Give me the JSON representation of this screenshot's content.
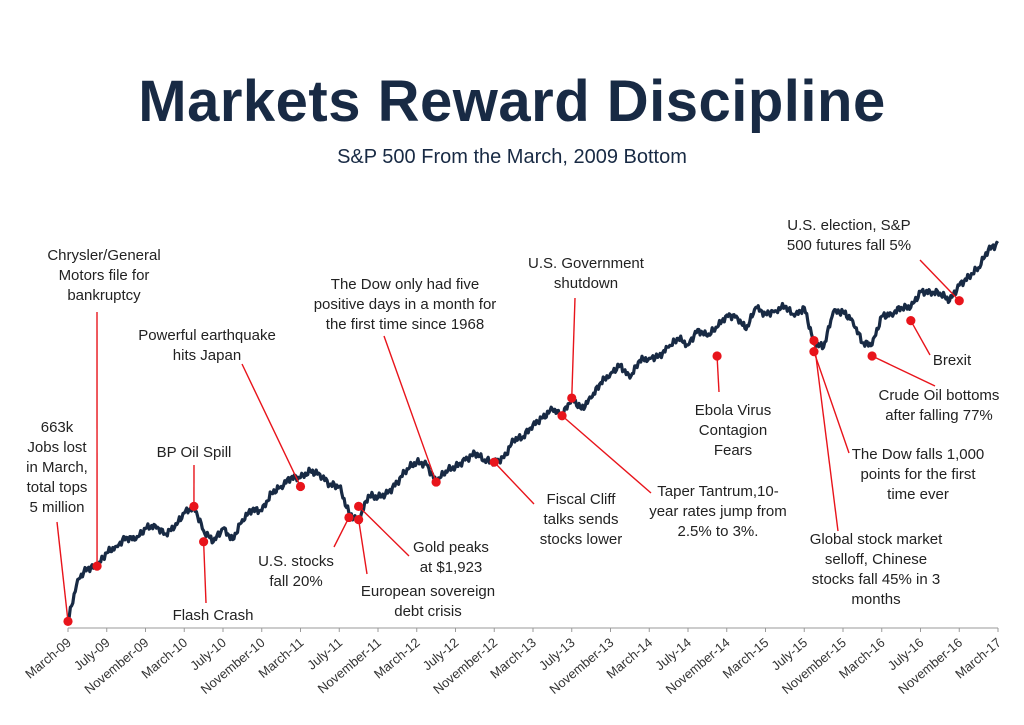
{
  "chart_data": {
    "type": "line",
    "title": "Markets Reward Discipline",
    "subtitle": "S&P 500 From the March, 2009 Bottom",
    "colors": {
      "line": "#182a44",
      "marker": "#e8141b",
      "title": "#182a44"
    },
    "x_range": [
      "2009-03",
      "2017-03"
    ],
    "x_ticks": [
      "March-09",
      "July-09",
      "November-09",
      "March-10",
      "July-10",
      "November-10",
      "March-11",
      "July-11",
      "November-11",
      "March-12",
      "July-12",
      "November-12",
      "March-13",
      "July-13",
      "November-13",
      "March-14",
      "July-14",
      "November-14",
      "March-15",
      "July-15",
      "November-15",
      "March-16",
      "July-16",
      "November-16",
      "March-17"
    ],
    "y_axis_visible": false,
    "grid": false,
    "ylim": [
      650,
      2450
    ],
    "series": [
      {
        "x": [
          "2009-03",
          "2009-04",
          "2009-05",
          "2009-06",
          "2009-07",
          "2009-08",
          "2009-09",
          "2009-10",
          "2009-11",
          "2009-12",
          "2010-01",
          "2010-02",
          "2010-03",
          "2010-04",
          "2010-05",
          "2010-06",
          "2010-07",
          "2010-08",
          "2010-09",
          "2010-10",
          "2010-11",
          "2010-12",
          "2011-01",
          "2011-02",
          "2011-03",
          "2011-04",
          "2011-05",
          "2011-06",
          "2011-07",
          "2011-08",
          "2011-09",
          "2011-10",
          "2011-11",
          "2011-12",
          "2012-01",
          "2012-02",
          "2012-03",
          "2012-04",
          "2012-05",
          "2012-06",
          "2012-07",
          "2012-08",
          "2012-09",
          "2012-10",
          "2012-11",
          "2012-12",
          "2013-01",
          "2013-02",
          "2013-03",
          "2013-04",
          "2013-05",
          "2013-06",
          "2013-07",
          "2013-08",
          "2013-09",
          "2013-10",
          "2013-11",
          "2013-12",
          "2014-01",
          "2014-02",
          "2014-03",
          "2014-04",
          "2014-05",
          "2014-06",
          "2014-07",
          "2014-08",
          "2014-09",
          "2014-10",
          "2014-11",
          "2014-12",
          "2015-01",
          "2015-02",
          "2015-03",
          "2015-04",
          "2015-05",
          "2015-06",
          "2015-07",
          "2015-08",
          "2015-09",
          "2015-10",
          "2015-11",
          "2015-12",
          "2016-01",
          "2016-02",
          "2016-03",
          "2016-04",
          "2016-05",
          "2016-06",
          "2016-07",
          "2016-08",
          "2016-09",
          "2016-10",
          "2016-11",
          "2016-12",
          "2017-01",
          "2017-02",
          "2017-03"
        ],
        "values": [
          680,
          870,
          920,
          930,
          990,
          1020,
          1060,
          1050,
          1100,
          1115,
          1075,
          1105,
          1170,
          1200,
          1090,
          1040,
          1100,
          1050,
          1140,
          1185,
          1180,
          1260,
          1290,
          1330,
          1330,
          1360,
          1345,
          1300,
          1290,
          1170,
          1130,
          1250,
          1240,
          1260,
          1310,
          1370,
          1400,
          1390,
          1310,
          1360,
          1380,
          1410,
          1440,
          1410,
          1400,
          1420,
          1500,
          1515,
          1570,
          1600,
          1640,
          1610,
          1690,
          1640,
          1690,
          1760,
          1800,
          1840,
          1780,
          1860,
          1870,
          1880,
          1920,
          1960,
          1930,
          2000,
          1970,
          2010,
          2065,
          2060,
          2000,
          2100,
          2070,
          2085,
          2105,
          2060,
          2100,
          1940,
          1920,
          2080,
          2080,
          2040,
          1940,
          1930,
          2060,
          2070,
          2100,
          2100,
          2170,
          2170,
          2165,
          2130,
          2200,
          2240,
          2280,
          2360,
          2390
        ]
      }
    ],
    "annotations": [
      {
        "date": "2009-03",
        "value": 680,
        "lines": [
          "663k",
          "Jobs lost",
          "in March,",
          "total tops",
          "5 million"
        ]
      },
      {
        "date": "2009-06",
        "value": 930,
        "lines": [
          "Chrysler/General",
          "Motors file for",
          "bankruptcy"
        ]
      },
      {
        "date": "2010-04",
        "value": 1200,
        "lines": [
          "BP Oil Spill"
        ]
      },
      {
        "date": "2010-05",
        "value": 1040,
        "lines": [
          "Flash Crash"
        ]
      },
      {
        "date": "2011-03",
        "value": 1290,
        "lines": [
          "Powerful earthquake",
          "hits Japan"
        ]
      },
      {
        "date": "2011-08",
        "value": 1150,
        "lines": [
          "U.S. stocks",
          "fall 20%"
        ]
      },
      {
        "date": "2011-09",
        "value": 1140,
        "lines": [
          "European sovereign",
          "debt crisis"
        ]
      },
      {
        "date": "2011-09",
        "value": 1200,
        "lines": [
          "Gold peaks",
          "at $1,923"
        ]
      },
      {
        "date": "2012-05",
        "value": 1310,
        "lines": [
          "The Dow only had five",
          "positive days in a month for",
          "the first time since 1968"
        ]
      },
      {
        "date": "2012-11",
        "value": 1400,
        "lines": [
          "Fiscal Cliff",
          "talks sends",
          "stocks lower"
        ]
      },
      {
        "date": "2013-06",
        "value": 1610,
        "lines": [
          "Taper Tantrum,10-",
          "year rates jump from",
          "2.5% to 3%."
        ]
      },
      {
        "date": "2013-07",
        "value": 1690,
        "lines": [
          "U.S. Government",
          "shutdown"
        ]
      },
      {
        "date": "2014-10",
        "value": 1880,
        "lines": [
          "Ebola Virus",
          "Contagion",
          "Fears"
        ]
      },
      {
        "date": "2015-08",
        "value": 1900,
        "lines": [
          "The Dow falls 1,000",
          "points for the first",
          "time ever"
        ]
      },
      {
        "date": "2015-08",
        "value": 1950,
        "lines": [
          "Global stock market",
          "selloff, Chinese",
          "stocks fall 45% in 3",
          "months"
        ]
      },
      {
        "date": "2016-02",
        "value": 1880,
        "lines": [
          "Crude Oil bottoms",
          "after falling 77%"
        ]
      },
      {
        "date": "2016-06",
        "value": 2040,
        "lines": [
          "Brexit"
        ]
      },
      {
        "date": "2016-11",
        "value": 2130,
        "lines": [
          "U.S. election, S&P",
          "500 futures fall 5%"
        ]
      }
    ]
  }
}
